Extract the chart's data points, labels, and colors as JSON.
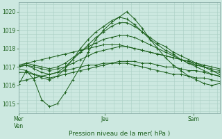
{
  "xlabel": "Pression niveau de la mer( hPa )",
  "ylim": [
    1014.5,
    1020.5
  ],
  "yticks": [
    1015,
    1016,
    1017,
    1018,
    1019,
    1020
  ],
  "xtick_labels": [
    "Mer\nVen",
    "Jeu",
    "Sam"
  ],
  "xtick_positions": [
    0.0,
    0.43,
    0.87
  ],
  "bg_color": "#cce8e0",
  "grid_color": "#aacfc5",
  "line_color": "#1a5e1a",
  "figsize": [
    3.2,
    2.0
  ],
  "dpi": 100,
  "series": [
    [
      1016.05,
      1016.8,
      1016.3,
      1015.2,
      1014.85,
      1015.0,
      1015.6,
      1016.3,
      1017.0,
      1017.8,
      1018.5,
      1019.0,
      1019.4,
      1019.7,
      1020.0,
      1019.6,
      1019.1,
      1018.5,
      1018.0,
      1017.5,
      1017.1,
      1016.8,
      1016.5,
      1016.3,
      1016.1,
      1016.0,
      1016.1
    ],
    [
      1016.9,
      1016.8,
      1016.6,
      1016.4,
      1016.3,
      1016.5,
      1016.9,
      1017.4,
      1018.0,
      1018.5,
      1018.9,
      1019.2,
      1019.5,
      1019.7,
      1019.6,
      1019.3,
      1018.9,
      1018.5,
      1018.2,
      1017.9,
      1017.7,
      1017.4,
      1017.2,
      1017.0,
      1016.8,
      1016.6,
      1016.5
    ],
    [
      1017.0,
      1017.1,
      1016.9,
      1016.7,
      1016.6,
      1016.7,
      1017.0,
      1017.4,
      1017.8,
      1018.2,
      1018.6,
      1018.9,
      1019.2,
      1019.4,
      1019.4,
      1019.2,
      1018.9,
      1018.6,
      1018.3,
      1018.1,
      1017.8,
      1017.6,
      1017.4,
      1017.2,
      1017.0,
      1016.8,
      1016.6
    ],
    [
      1017.0,
      1017.2,
      1017.1,
      1017.0,
      1016.9,
      1017.0,
      1017.2,
      1017.5,
      1017.8,
      1018.1,
      1018.3,
      1018.5,
      1018.6,
      1018.7,
      1018.7,
      1018.6,
      1018.4,
      1018.2,
      1018.0,
      1017.8,
      1017.6,
      1017.4,
      1017.3,
      1017.1,
      1017.0,
      1016.8,
      1016.7
    ],
    [
      1017.0,
      1017.1,
      1017.0,
      1016.9,
      1016.8,
      1016.9,
      1017.0,
      1017.2,
      1017.4,
      1017.6,
      1017.8,
      1017.9,
      1018.0,
      1018.1,
      1018.1,
      1018.0,
      1017.9,
      1017.8,
      1017.7,
      1017.6,
      1017.5,
      1017.4,
      1017.2,
      1017.1,
      1017.0,
      1016.9,
      1016.8
    ],
    [
      1016.7,
      1016.7,
      1016.6,
      1016.5,
      1016.4,
      1016.5,
      1016.6,
      1016.7,
      1016.8,
      1016.9,
      1017.0,
      1017.1,
      1017.2,
      1017.3,
      1017.3,
      1017.3,
      1017.2,
      1017.2,
      1017.1,
      1017.0,
      1017.0,
      1016.9,
      1016.8,
      1016.8,
      1016.7,
      1016.6,
      1016.5
    ],
    [
      1017.1,
      1017.2,
      1017.3,
      1017.4,
      1017.5,
      1017.6,
      1017.7,
      1017.8,
      1017.9,
      1018.0,
      1018.1,
      1018.2,
      1018.2,
      1018.2,
      1018.1,
      1018.0,
      1017.9,
      1017.8,
      1017.7,
      1017.6,
      1017.5,
      1017.4,
      1017.3,
      1017.2,
      1017.1,
      1017.0,
      1016.9
    ],
    [
      1016.2,
      1016.3,
      1016.4,
      1016.5,
      1016.6,
      1016.7,
      1016.8,
      1016.9,
      1017.0,
      1017.1,
      1017.1,
      1017.2,
      1017.2,
      1017.2,
      1017.2,
      1017.1,
      1017.0,
      1016.9,
      1016.8,
      1016.7,
      1016.6,
      1016.6,
      1016.5,
      1016.4,
      1016.4,
      1016.3,
      1016.2
    ]
  ]
}
